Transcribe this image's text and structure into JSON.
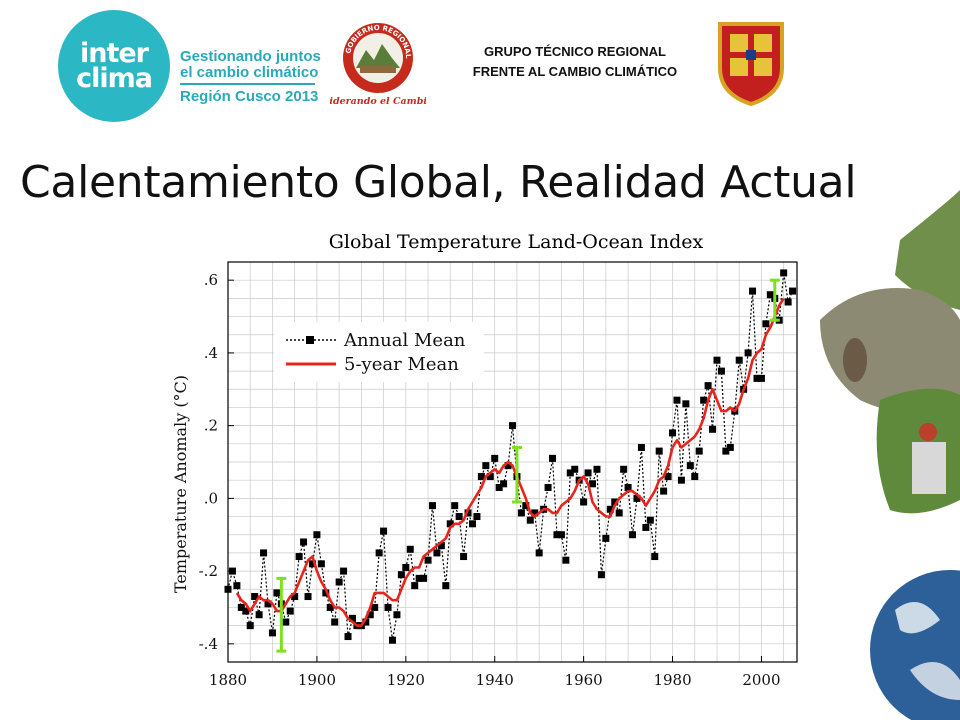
{
  "header": {
    "logo_line1": "inter",
    "logo_line2": "clima",
    "tagline_1": "Gestionando juntos",
    "tagline_2": "el cambio climático",
    "region_line": "Región Cusco 2013",
    "seal_ring_text": "GOBIERNO REGIONAL CUSCO",
    "seal_motto": "Liderando el Cambio",
    "group_title_1": "GRUPO TÉCNICO REGIONAL",
    "group_title_2": "FRENTE AL CAMBIO CLIMÁTICO",
    "brand_color": "#2bb8c4"
  },
  "slide": {
    "title": "Calentamiento Global, Realidad Actual"
  },
  "chart_data": {
    "type": "line",
    "title": "Global Temperature Land-Ocean Index",
    "ylabel": "Temperature Anomaly (°C)",
    "xlabel": "",
    "xlim": [
      1880,
      2008
    ],
    "ylim": [
      -0.45,
      0.65
    ],
    "x_ticks": [
      1880,
      1900,
      1920,
      1940,
      1960,
      1980,
      2000
    ],
    "y_ticks": [
      -0.4,
      -0.2,
      0.0,
      0.2,
      0.4,
      0.6
    ],
    "y_tick_labels": [
      "-.4",
      "-.2",
      ".0",
      ".2",
      ".4",
      ".6"
    ],
    "grid": true,
    "legend_position": "top-left",
    "series": [
      {
        "name": "Annual Mean",
        "style": "black dotted line with square markers",
        "color": "#000000",
        "x": [
          1880,
          1881,
          1882,
          1883,
          1884,
          1885,
          1886,
          1887,
          1888,
          1889,
          1890,
          1891,
          1892,
          1893,
          1894,
          1895,
          1896,
          1897,
          1898,
          1899,
          1900,
          1901,
          1902,
          1903,
          1904,
          1905,
          1906,
          1907,
          1908,
          1909,
          1910,
          1911,
          1912,
          1913,
          1914,
          1915,
          1916,
          1917,
          1918,
          1919,
          1920,
          1921,
          1922,
          1923,
          1924,
          1925,
          1926,
          1927,
          1928,
          1929,
          1930,
          1931,
          1932,
          1933,
          1934,
          1935,
          1936,
          1937,
          1938,
          1939,
          1940,
          1941,
          1942,
          1943,
          1944,
          1945,
          1946,
          1947,
          1948,
          1949,
          1950,
          1951,
          1952,
          1953,
          1954,
          1955,
          1956,
          1957,
          1958,
          1959,
          1960,
          1961,
          1962,
          1963,
          1964,
          1965,
          1966,
          1967,
          1968,
          1969,
          1970,
          1971,
          1972,
          1973,
          1974,
          1975,
          1976,
          1977,
          1978,
          1979,
          1980,
          1981,
          1982,
          1983,
          1984,
          1985,
          1986,
          1987,
          1988,
          1989,
          1990,
          1991,
          1992,
          1993,
          1994,
          1995,
          1996,
          1997,
          1998,
          1999,
          2000,
          2001,
          2002,
          2003,
          2004,
          2005,
          2006,
          2007
        ],
        "values": [
          -0.25,
          -0.2,
          -0.24,
          -0.3,
          -0.31,
          -0.35,
          -0.27,
          -0.32,
          -0.15,
          -0.29,
          -0.37,
          -0.26,
          -0.29,
          -0.34,
          -0.31,
          -0.27,
          -0.16,
          -0.12,
          -0.27,
          -0.18,
          -0.1,
          -0.18,
          -0.26,
          -0.3,
          -0.34,
          -0.23,
          -0.2,
          -0.38,
          -0.33,
          -0.35,
          -0.35,
          -0.34,
          -0.32,
          -0.3,
          -0.15,
          -0.09,
          -0.3,
          -0.39,
          -0.32,
          -0.21,
          -0.19,
          -0.14,
          -0.24,
          -0.22,
          -0.22,
          -0.17,
          -0.02,
          -0.15,
          -0.13,
          -0.24,
          -0.07,
          -0.02,
          -0.05,
          -0.16,
          -0.04,
          -0.07,
          -0.05,
          0.06,
          0.09,
          0.06,
          0.11,
          0.03,
          0.04,
          0.09,
          0.2,
          0.06,
          -0.04,
          -0.02,
          -0.06,
          -0.04,
          -0.15,
          -0.03,
          0.03,
          0.11,
          -0.1,
          -0.1,
          -0.17,
          0.07,
          0.08,
          0.05,
          -0.01,
          0.07,
          0.04,
          0.08,
          -0.21,
          -0.11,
          -0.03,
          -0.01,
          -0.04,
          0.08,
          0.03,
          -0.1,
          0.0,
          0.14,
          -0.08,
          -0.06,
          -0.16,
          0.13,
          0.02,
          0.06,
          0.18,
          0.27,
          0.05,
          0.26,
          0.09,
          0.06,
          0.13,
          0.27,
          0.31,
          0.19,
          0.38,
          0.35,
          0.13,
          0.14,
          0.24,
          0.38,
          0.3,
          0.4,
          0.57,
          0.33,
          0.33,
          0.48,
          0.56,
          0.55,
          0.49,
          0.62,
          0.54,
          0.57
        ]
      },
      {
        "name": "5-year Mean",
        "style": "solid red line",
        "color": "#e8251c",
        "x": [
          1882,
          1883,
          1884,
          1885,
          1886,
          1887,
          1888,
          1889,
          1890,
          1891,
          1892,
          1893,
          1894,
          1895,
          1896,
          1897,
          1898,
          1899,
          1900,
          1901,
          1902,
          1903,
          1904,
          1905,
          1906,
          1907,
          1908,
          1909,
          1910,
          1911,
          1912,
          1913,
          1914,
          1915,
          1916,
          1917,
          1918,
          1919,
          1920,
          1921,
          1922,
          1923,
          1924,
          1925,
          1926,
          1927,
          1928,
          1929,
          1930,
          1931,
          1932,
          1933,
          1934,
          1935,
          1936,
          1937,
          1938,
          1939,
          1940,
          1941,
          1942,
          1943,
          1944,
          1945,
          1946,
          1947,
          1948,
          1949,
          1950,
          1951,
          1952,
          1953,
          1954,
          1955,
          1956,
          1957,
          1958,
          1959,
          1960,
          1961,
          1962,
          1963,
          1964,
          1965,
          1966,
          1967,
          1968,
          1969,
          1970,
          1971,
          1972,
          1973,
          1974,
          1975,
          1976,
          1977,
          1978,
          1979,
          1980,
          1981,
          1982,
          1983,
          1984,
          1985,
          1986,
          1987,
          1988,
          1989,
          1990,
          1991,
          1992,
          1993,
          1994,
          1995,
          1996,
          1997,
          1998,
          1999,
          2000,
          2001,
          2002,
          2003,
          2004,
          2005
        ],
        "values": [
          -0.26,
          -0.28,
          -0.29,
          -0.31,
          -0.29,
          -0.27,
          -0.28,
          -0.28,
          -0.29,
          -0.31,
          -0.31,
          -0.29,
          -0.27,
          -0.26,
          -0.23,
          -0.2,
          -0.17,
          -0.16,
          -0.2,
          -0.23,
          -0.25,
          -0.28,
          -0.3,
          -0.3,
          -0.31,
          -0.33,
          -0.34,
          -0.35,
          -0.35,
          -0.33,
          -0.3,
          -0.26,
          -0.26,
          -0.26,
          -0.27,
          -0.28,
          -0.28,
          -0.25,
          -0.22,
          -0.2,
          -0.19,
          -0.19,
          -0.16,
          -0.15,
          -0.14,
          -0.13,
          -0.12,
          -0.11,
          -0.08,
          -0.07,
          -0.07,
          -0.06,
          -0.03,
          -0.01,
          0.01,
          0.03,
          0.06,
          0.07,
          0.08,
          0.07,
          0.09,
          0.1,
          0.09,
          0.06,
          0.03,
          0.0,
          -0.04,
          -0.05,
          -0.04,
          -0.03,
          -0.03,
          -0.04,
          -0.04,
          -0.02,
          -0.01,
          0.0,
          0.02,
          0.05,
          0.06,
          0.04,
          -0.01,
          -0.03,
          -0.04,
          -0.05,
          -0.05,
          -0.02,
          0.0,
          0.01,
          0.02,
          0.02,
          0.01,
          0.0,
          -0.02,
          0.0,
          0.02,
          0.05,
          0.06,
          0.09,
          0.14,
          0.16,
          0.14,
          0.15,
          0.16,
          0.17,
          0.19,
          0.22,
          0.27,
          0.3,
          0.27,
          0.24,
          0.24,
          0.25,
          0.24,
          0.26,
          0.3,
          0.33,
          0.38,
          0.4,
          0.41,
          0.45,
          0.47,
          0.5,
          0.53,
          0.55
        ]
      }
    ],
    "error_bars": [
      {
        "x": 1892,
        "low": -0.42,
        "high": -0.22,
        "color": "#7fe11e"
      },
      {
        "x": 1945,
        "low": -0.01,
        "high": 0.14,
        "color": "#7fe11e"
      },
      {
        "x": 2003,
        "low": 0.49,
        "high": 0.6,
        "color": "#7fe11e"
      }
    ]
  }
}
